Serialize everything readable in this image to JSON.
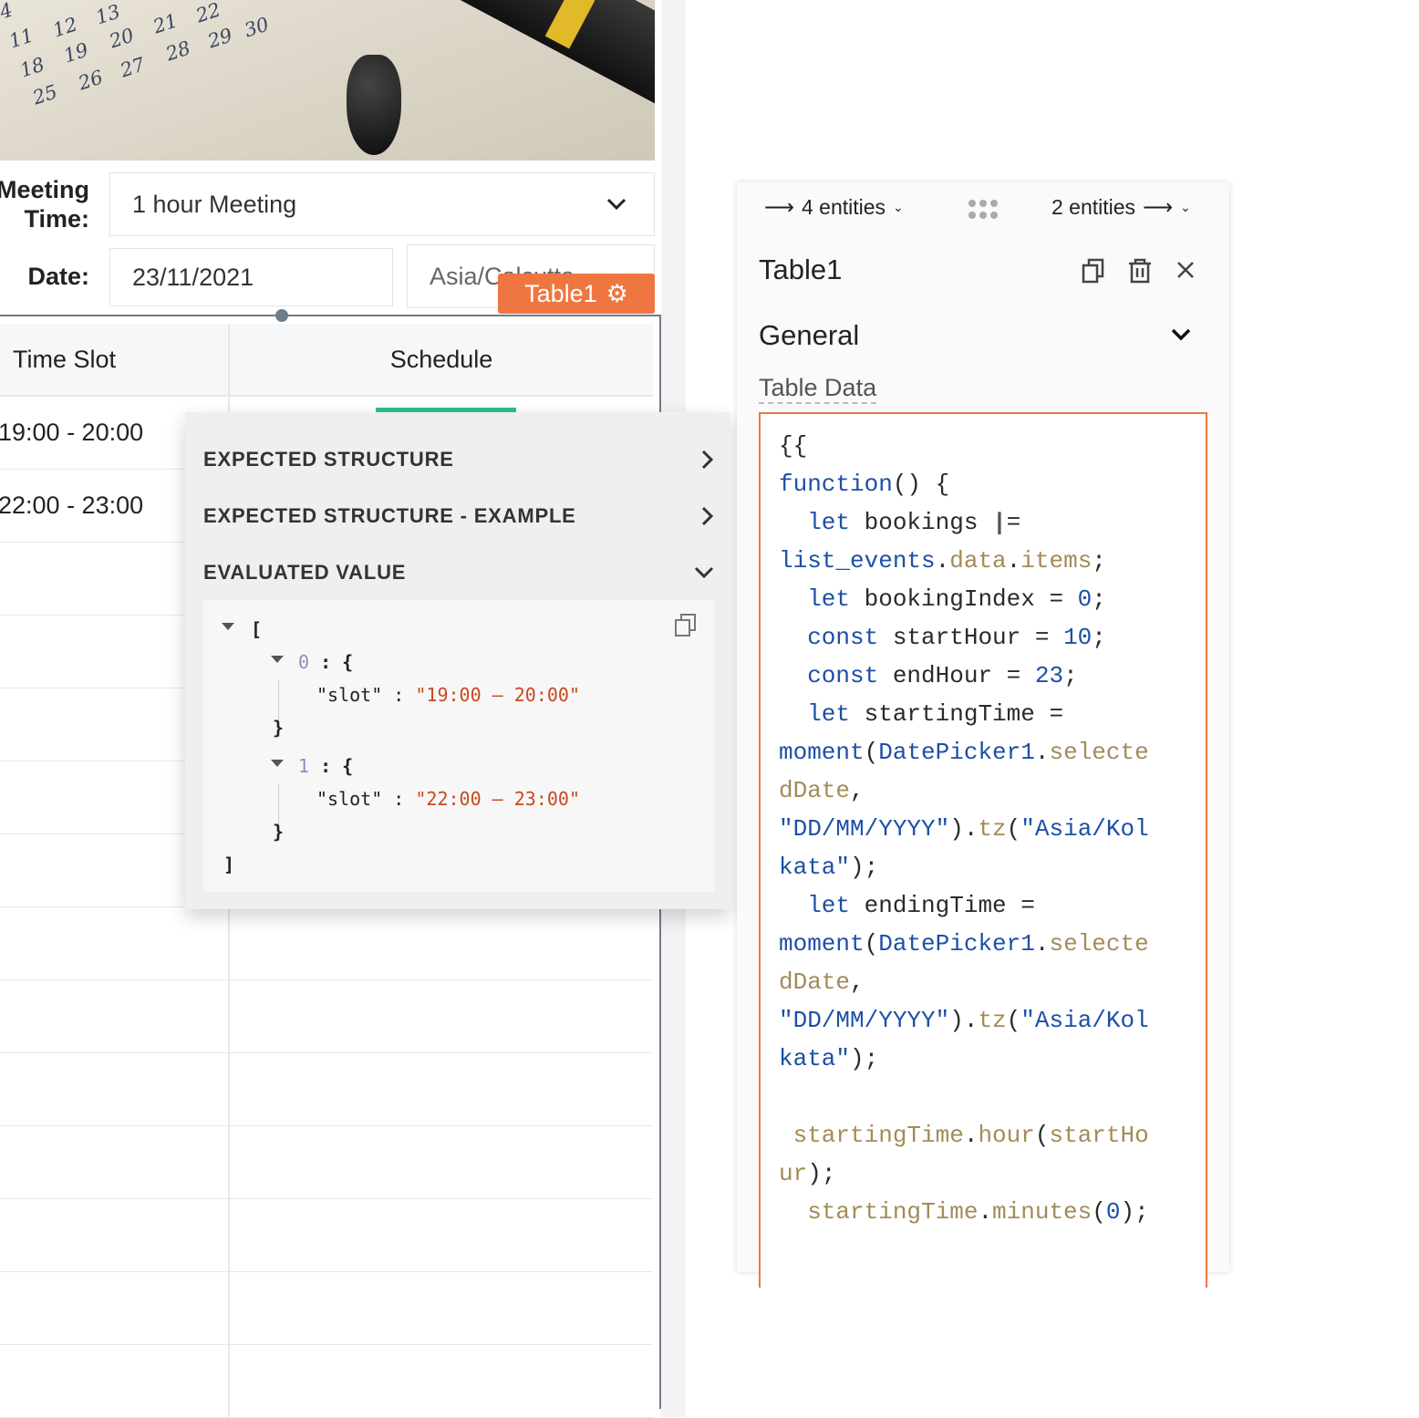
{
  "photo": {
    "numbers": [
      "4",
      "11",
      "12",
      "13",
      "21",
      "22",
      "18",
      "19",
      "20",
      "28",
      "29",
      "30",
      "25",
      "26",
      "27"
    ]
  },
  "form": {
    "meeting_label": "Meeting Time:",
    "meeting_label_l1": "Meeting",
    "meeting_label_l2": "Time:",
    "meeting_value": "1 hour Meeting",
    "date_label": "Date:",
    "date_value": "23/11/2021",
    "timezone_value": "Asia/Calcutta"
  },
  "widget_tag": {
    "label": "Table1",
    "icon": "gear-icon",
    "color": "#ef7541"
  },
  "table": {
    "columns": [
      "Time Slot",
      "Schedule"
    ],
    "rows": [
      [
        "19:00 - 20:00",
        ""
      ],
      [
        "22:00 - 23:00",
        ""
      ]
    ],
    "accent": "#2bbf8e"
  },
  "popup": {
    "sections": [
      {
        "label": "EXPECTED STRUCTURE",
        "state": "collapsed"
      },
      {
        "label": "EXPECTED STRUCTURE - EXAMPLE",
        "state": "collapsed"
      },
      {
        "label": "EVALUATED VALUE",
        "state": "expanded"
      }
    ],
    "json": {
      "open": "[",
      "items": [
        {
          "index": "0",
          "key": "\"slot\"",
          "value": "\"19:00 – 20:00\""
        },
        {
          "index": "1",
          "key": "\"slot\"",
          "value": "\"22:00 – 23:00\""
        }
      ],
      "close": "]",
      "obj_open": ": {",
      "obj_close": "}",
      "sep": ":"
    }
  },
  "panel": {
    "left_nav": "4 entities",
    "right_nav": "2 entities",
    "title": "Table1",
    "section": "General",
    "property_label": "Table Data",
    "code_lines": [
      [
        [
          "{{",
          "d"
        ]
      ],
      [
        [
          "function",
          "k"
        ],
        [
          "() {",
          "d"
        ]
      ],
      [
        [
          "  let ",
          "k"
        ],
        [
          "bookings ",
          "d"
        ],
        [
          "|",
          "d"
        ],
        [
          "=",
          "d"
        ]
      ],
      [
        [
          "list_events",
          "k"
        ],
        [
          ".",
          "d"
        ],
        [
          "data",
          "p"
        ],
        [
          ".",
          "d"
        ],
        [
          "items",
          "p"
        ],
        [
          ";",
          "d"
        ]
      ],
      [
        [
          "  let ",
          "k"
        ],
        [
          "bookingIndex = ",
          "d"
        ],
        [
          "0",
          "k"
        ],
        [
          ";",
          "d"
        ]
      ],
      [
        [
          "  const ",
          "k"
        ],
        [
          "startHour = ",
          "d"
        ],
        [
          "10",
          "k"
        ],
        [
          ";",
          "d"
        ]
      ],
      [
        [
          "  const ",
          "k"
        ],
        [
          "endHour = ",
          "d"
        ],
        [
          "23",
          "k"
        ],
        [
          ";",
          "d"
        ]
      ],
      [
        [
          "  let ",
          "k"
        ],
        [
          "startingTime =",
          "d"
        ]
      ],
      [
        [
          "moment",
          "k"
        ],
        [
          "(",
          "d"
        ],
        [
          "DatePicker1",
          "k"
        ],
        [
          ".",
          "d"
        ],
        [
          "selecte",
          "p"
        ]
      ],
      [
        [
          "dDate",
          "p"
        ],
        [
          ",",
          "d"
        ]
      ],
      [
        [
          "\"DD/MM/YYYY\"",
          "k"
        ],
        [
          ").",
          "d"
        ],
        [
          "tz",
          "p"
        ],
        [
          "(",
          "d"
        ],
        [
          "\"Asia/Kol",
          "k"
        ]
      ],
      [
        [
          "kata\"",
          "k"
        ],
        [
          ");",
          "d"
        ]
      ],
      [
        [
          "  let ",
          "k"
        ],
        [
          "endingTime =",
          "d"
        ]
      ],
      [
        [
          "moment",
          "k"
        ],
        [
          "(",
          "d"
        ],
        [
          "DatePicker1",
          "k"
        ],
        [
          ".",
          "d"
        ],
        [
          "selecte",
          "p"
        ]
      ],
      [
        [
          "dDate",
          "p"
        ],
        [
          ",",
          "d"
        ]
      ],
      [
        [
          "\"DD/MM/YYYY\"",
          "k"
        ],
        [
          ").",
          "d"
        ],
        [
          "tz",
          "p"
        ],
        [
          "(",
          "d"
        ],
        [
          "\"Asia/Kol",
          "k"
        ]
      ],
      [
        [
          "kata\"",
          "k"
        ],
        [
          ");",
          "d"
        ]
      ],
      [],
      [
        [
          " startingTime",
          "p"
        ],
        [
          ".",
          "d"
        ],
        [
          "hour",
          "p"
        ],
        [
          "(",
          "d"
        ],
        [
          "startHo",
          "p"
        ]
      ],
      [
        [
          "ur",
          "p"
        ],
        [
          ");",
          "d"
        ]
      ],
      [
        [
          "  startingTime",
          "p"
        ],
        [
          ".",
          "d"
        ],
        [
          "minutes",
          "p"
        ],
        [
          "(",
          "d"
        ],
        [
          "0",
          "k"
        ],
        [
          ");",
          "d"
        ]
      ]
    ]
  }
}
